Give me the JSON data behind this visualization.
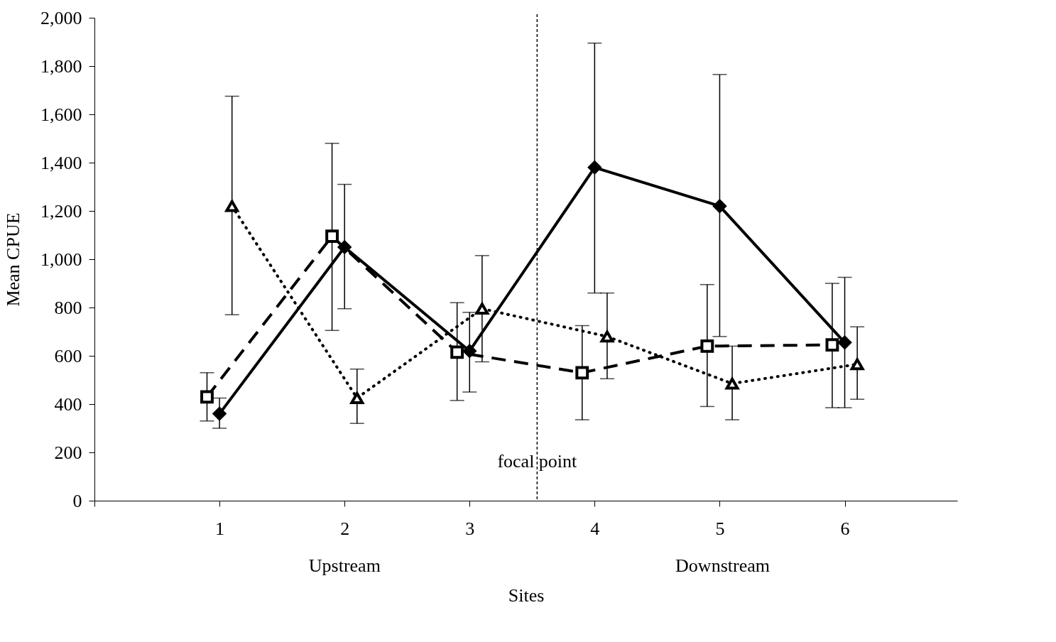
{
  "chart_data": {
    "type": "line",
    "xlabel": "Sites",
    "ylabel": "Mean  CPUE",
    "xlim": [
      0,
      6.9
    ],
    "xticks": [
      {
        "value": 0,
        "label": null
      },
      1,
      2,
      3,
      4,
      5,
      6
    ],
    "ylim": [
      0,
      2000
    ],
    "yticks": [
      0,
      200,
      400,
      600,
      800,
      {
        "value": 1000,
        "label": "1,000"
      },
      {
        "value": 1200,
        "label": "1,200"
      },
      {
        "value": 1400,
        "label": "1,400"
      },
      {
        "value": 1600,
        "label": "1,600"
      },
      {
        "value": 1800,
        "label": "1,800"
      },
      {
        "value": 2000,
        "label": "2,000"
      }
    ],
    "grid": false,
    "series": [
      {
        "color": "#000000",
        "marker": "diamond",
        "line_style": "solid",
        "x": [
          1,
          2,
          3,
          4,
          5,
          6
        ],
        "values": [
          360,
          1050,
          620,
          1380,
          1220,
          655
        ],
        "errors": [
          [
            300,
            425
          ],
          [
            795,
            1310
          ],
          [
            450,
            780
          ],
          [
            860,
            1895
          ],
          [
            680,
            1765
          ],
          [
            385,
            925
          ]
        ]
      },
      {
        "color": "#000000",
        "marker": "square",
        "line_style": "dashed",
        "x": [
          0.9,
          1.9,
          2.9,
          3.9,
          4.9,
          5.9
        ],
        "values": [
          430,
          1095,
          615,
          530,
          640,
          645
        ],
        "errors": [
          [
            330,
            530
          ],
          [
            705,
            1480
          ],
          [
            415,
            820
          ],
          [
            335,
            725
          ],
          [
            390,
            895
          ],
          [
            385,
            900
          ]
        ]
      },
      {
        "color": "#000000",
        "marker": "triangle",
        "line_style": "dotted",
        "x": [
          1.1,
          2.1,
          3.1,
          4.1,
          5.1,
          6.1
        ],
        "values": [
          1220,
          425,
          795,
          680,
          485,
          565
        ],
        "errors": [
          [
            770,
            1675
          ],
          [
            320,
            545
          ],
          [
            575,
            1015
          ],
          [
            505,
            860
          ],
          [
            335,
            640
          ],
          [
            420,
            720
          ]
        ]
      }
    ],
    "ref_lines": [
      {
        "axis": "x",
        "value": 3.54,
        "label": "focal point",
        "line_style": "dashed",
        "color": "#000000"
      }
    ],
    "annotations": [
      "Upstream",
      "Downstream"
    ]
  }
}
